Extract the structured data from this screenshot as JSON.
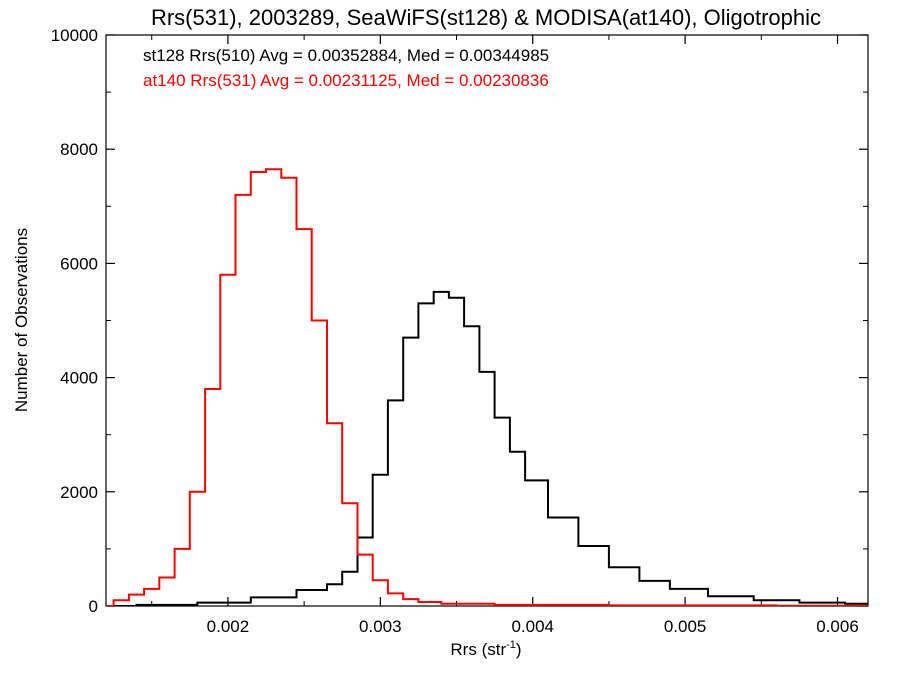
{
  "chart_data": {
    "type": "line",
    "title": "Rrs(531), 2003289, SeaWiFS(st128) & MODISA(at140), Oligotrophic",
    "xlabel": "Rrs (str",
    "xlabel_sup": "-1",
    "xlabel_close": ")",
    "ylabel": "Number of Observations",
    "xlim": [
      0.0012,
      0.0062
    ],
    "ylim": [
      0,
      10000
    ],
    "x_ticks": [
      0.002,
      0.003,
      0.004,
      0.005,
      0.006
    ],
    "x_tick_labels": [
      "0.002",
      "0.003",
      "0.004",
      "0.005",
      "0.006"
    ],
    "y_ticks": [
      0,
      2000,
      4000,
      6000,
      8000,
      10000
    ],
    "y_tick_labels": [
      "0",
      "2000",
      "4000",
      "6000",
      "8000",
      "10000"
    ],
    "grid": false,
    "legend_position": "top-left",
    "series": [
      {
        "name": "st128 Rrs(510) Avg = 0.00352884, Med = 0.00344985",
        "color": "#000000",
        "x": [
          0.0012,
          0.0016,
          0.002,
          0.0023,
          0.0026,
          0.0027,
          0.0028,
          0.0029,
          0.003,
          0.0031,
          0.0032,
          0.0033,
          0.0034,
          0.0035,
          0.0036,
          0.0037,
          0.0038,
          0.0039,
          0.004,
          0.0042,
          0.0044,
          0.0046,
          0.0048,
          0.005,
          0.0053,
          0.0056,
          0.0059,
          0.0062
        ],
        "y": [
          0,
          20,
          60,
          150,
          280,
          380,
          600,
          1200,
          2300,
          3600,
          4700,
          5300,
          5500,
          5400,
          4900,
          4100,
          3300,
          2700,
          2200,
          1550,
          1050,
          680,
          440,
          300,
          170,
          100,
          60,
          40
        ]
      },
      {
        "name": "at140 Rrs(531) Avg = 0.00231125, Med = 0.00230836",
        "color": "#ff0000",
        "x": [
          0.0012,
          0.0013,
          0.0014,
          0.0015,
          0.0016,
          0.0017,
          0.0018,
          0.0019,
          0.002,
          0.0021,
          0.0022,
          0.0023,
          0.0024,
          0.0025,
          0.0026,
          0.0027,
          0.0028,
          0.0029,
          0.003,
          0.0031,
          0.0032,
          0.0033,
          0.0035,
          0.004,
          0.005,
          0.0062
        ],
        "y": [
          0,
          100,
          200,
          300,
          500,
          1000,
          2000,
          3800,
          5800,
          7200,
          7600,
          7650,
          7500,
          6600,
          5000,
          3200,
          1800,
          900,
          450,
          220,
          120,
          70,
          40,
          20,
          10,
          5
        ]
      }
    ]
  }
}
